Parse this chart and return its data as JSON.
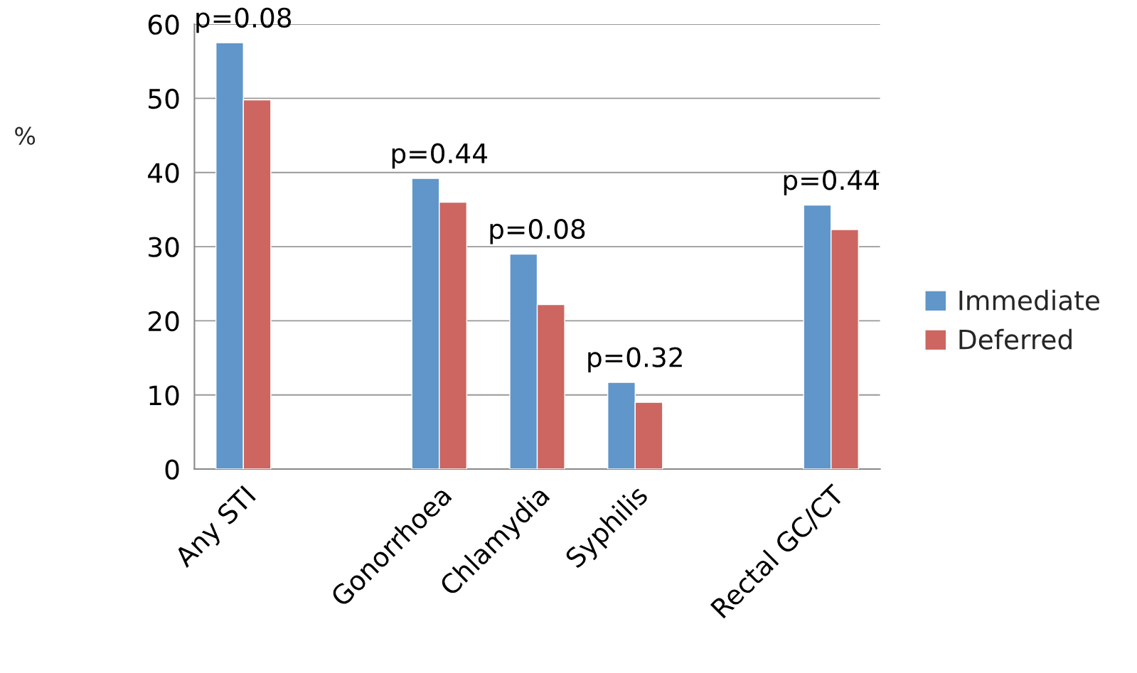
{
  "chart_data": {
    "type": "bar",
    "ylabel": "%",
    "categories": [
      "Any STI",
      null,
      "Gonorrhoea",
      "Chlamydia",
      "Syphilis",
      null,
      "Rectal GC/CT"
    ],
    "series": [
      {
        "name": "Immediate",
        "color": "#6096c9",
        "values": [
          57.5,
          null,
          39.2,
          29.0,
          11.7,
          null,
          35.6
        ]
      },
      {
        "name": "Deferred",
        "color": "#cd6660",
        "values": [
          49.8,
          null,
          36.0,
          22.2,
          9.0,
          null,
          32.3
        ]
      }
    ],
    "ylim": [
      0,
      60
    ],
    "yticks": [
      0,
      10,
      20,
      30,
      40,
      50,
      60
    ],
    "grid": "y",
    "legend": "right",
    "annotations": [
      "p=0.08",
      "p=0.44",
      "p=0.08",
      "p=0.32",
      "p=0.44"
    ]
  }
}
